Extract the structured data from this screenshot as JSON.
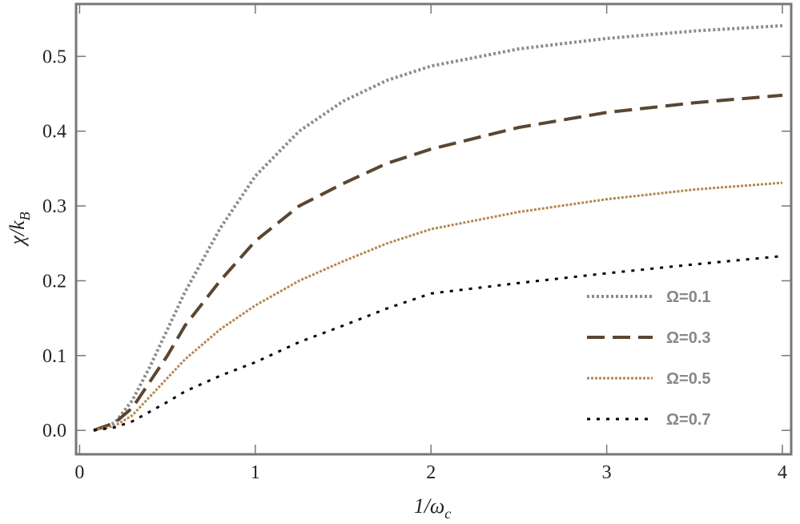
{
  "chart_data": {
    "type": "line",
    "x_label": {
      "main": "1/ω",
      "subscript": "c"
    },
    "y_label": {
      "main": "χ/k",
      "subscript": "B"
    },
    "x": [
      0.08,
      0.2,
      0.3,
      0.4,
      0.5,
      0.6,
      0.8,
      1.0,
      1.25,
      1.5,
      1.75,
      2,
      2.5,
      3,
      3.5,
      4
    ],
    "series": [
      {
        "name": "Ω=0.1",
        "color": "#8c8c8c",
        "values": [
          0,
          0.01,
          0.04,
          0.085,
          0.135,
          0.185,
          0.27,
          0.34,
          0.4,
          0.44,
          0.468,
          0.487,
          0.51,
          0.524,
          0.534,
          0.541
        ]
      },
      {
        "name": "Ω=0.3",
        "color": "#5a4632",
        "values": [
          0,
          0.01,
          0.03,
          0.065,
          0.1,
          0.14,
          0.2,
          0.253,
          0.3,
          0.33,
          0.357,
          0.376,
          0.405,
          0.425,
          0.438,
          0.448
        ]
      },
      {
        "name": "Ω=0.5",
        "color": "#b5854f",
        "values": [
          0,
          0.006,
          0.02,
          0.045,
          0.07,
          0.095,
          0.135,
          0.167,
          0.2,
          0.226,
          0.25,
          0.269,
          0.292,
          0.309,
          0.322,
          0.331
        ]
      },
      {
        "name": "Ω=0.7",
        "color": "#000000",
        "values": [
          0,
          0.004,
          0.012,
          0.025,
          0.038,
          0.052,
          0.073,
          0.091,
          0.118,
          0.14,
          0.163,
          0.183,
          0.197,
          0.21,
          0.222,
          0.233
        ]
      }
    ],
    "xlim": [
      -0.02,
      4.05
    ],
    "ylim": [
      -0.032,
      0.57
    ],
    "xticks": [
      0,
      1,
      2,
      3,
      4
    ],
    "yticks": [
      {
        "value": 0,
        "label": "0.0"
      },
      0.1,
      0.2,
      0.3,
      0.4,
      0.5
    ],
    "legend": "right"
  }
}
